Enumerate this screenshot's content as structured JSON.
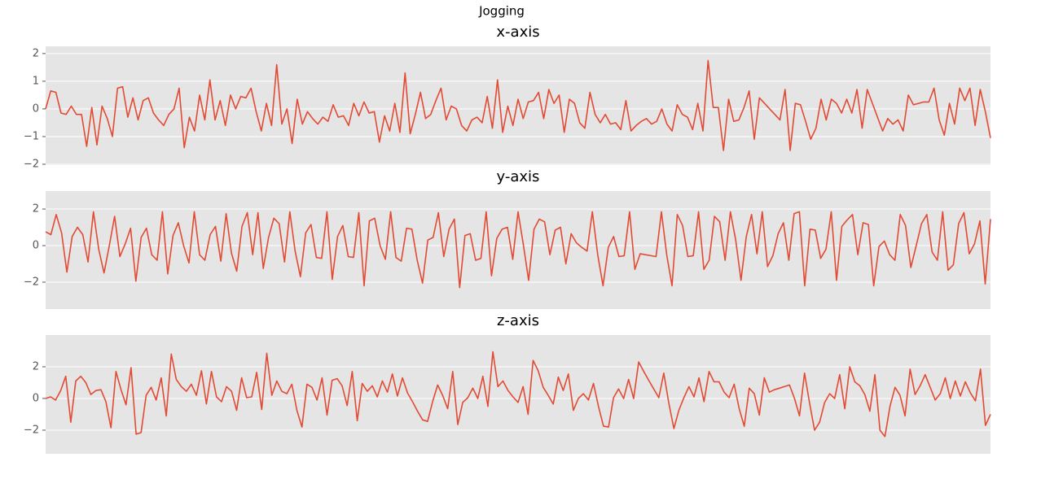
{
  "title": "Jogging",
  "chart_data": [
    {
      "type": "line",
      "title": "x-axis",
      "grid": true,
      "ylim": [
        -2.03,
        2.26
      ],
      "yticks": [
        {
          "value": -2,
          "label": "−2"
        },
        {
          "value": -1,
          "label": "−1"
        },
        0,
        1,
        2
      ],
      "series": [
        {
          "color": "#e24a33",
          "values": [
            0,
            0.65,
            0.6,
            -0.15,
            -0.2,
            0.1,
            -0.2,
            -0.2,
            -1.35,
            0.05,
            -1.3,
            0.1,
            -0.35,
            -1.0,
            0.75,
            0.8,
            -0.3,
            0.4,
            -0.4,
            0.3,
            0.4,
            -0.15,
            -0.4,
            -0.6,
            -0.2,
            0,
            0.75,
            -1.4,
            -0.3,
            -0.8,
            0.5,
            -0.4,
            1.05,
            -0.4,
            0.3,
            -0.6,
            0.5,
            0,
            0.45,
            0.4,
            0.75,
            -0.1,
            -0.8,
            0.2,
            -0.6,
            1.6,
            -0.55,
            0,
            -1.25,
            0.35,
            -0.55,
            -0.1,
            -0.35,
            -0.55,
            -0.3,
            -0.45,
            0.15,
            -0.3,
            -0.25,
            -0.6,
            0.2,
            -0.25,
            0.25,
            -0.15,
            -0.1,
            -1.2,
            -0.25,
            -0.8,
            0.2,
            -0.85,
            1.3,
            -0.9,
            -0.2,
            0.6,
            -0.35,
            -0.2,
            0.3,
            0.75,
            -0.4,
            0.1,
            0,
            -0.6,
            -0.8,
            -0.4,
            -0.3,
            -0.5,
            0.45,
            -0.7,
            1.05,
            -0.85,
            0.1,
            -0.6,
            0.35,
            -0.35,
            0.25,
            0.3,
            0.6,
            -0.35,
            0.7,
            0.2,
            0.5,
            -0.85,
            0.35,
            0.2,
            -0.5,
            -0.7,
            0.6,
            -0.2,
            -0.5,
            -0.2,
            -0.55,
            -0.5,
            -0.75,
            0.3,
            -0.8,
            -0.6,
            -0.45,
            -0.35,
            -0.55,
            -0.45,
            0,
            -0.55,
            -0.8,
            0.15,
            -0.2,
            -0.3,
            -0.75,
            0.2,
            -0.8,
            1.75,
            0.05,
            0.05,
            -1.5,
            0.35,
            -0.45,
            -0.4,
            0.05,
            0.65,
            -1.1,
            0.4,
            0.2,
            0,
            -0.2,
            -0.4,
            0.7,
            -1.5,
            0.2,
            0.15,
            -0.45,
            -1.1,
            -0.7,
            0.35,
            -0.4,
            0.35,
            0.2,
            -0.15,
            0.35,
            -0.15,
            0.7,
            -0.7,
            0.7,
            0.2,
            -0.3,
            -0.8,
            -0.35,
            -0.55,
            -0.4,
            -0.8,
            0.5,
            0.15,
            0.2,
            0.25,
            0.25,
            0.75,
            -0.4,
            -0.95,
            0.2,
            -0.55,
            0.75,
            0.3,
            0.75,
            -0.6,
            0.7,
            -0.1,
            -1.05
          ]
        }
      ]
    },
    {
      "type": "line",
      "title": "y-axis",
      "grid": true,
      "ylim": [
        -3.47,
        2.98
      ],
      "yticks": [
        {
          "value": -2,
          "label": "−2"
        },
        0,
        2
      ],
      "series": [
        {
          "color": "#e24a33",
          "values": [
            0.75,
            0.6,
            1.7,
            0.7,
            -1.45,
            0.5,
            1.0,
            0.6,
            -0.9,
            1.85,
            -0.2,
            -1.5,
            0,
            1.6,
            -0.6,
            0.1,
            0.95,
            -1.95,
            0.45,
            0.95,
            -0.5,
            -0.8,
            1.85,
            -1.55,
            0.55,
            1.25,
            0,
            -0.95,
            1.85,
            -0.5,
            -0.8,
            0.6,
            1.05,
            -0.85,
            1.75,
            -0.4,
            -1.4,
            1.05,
            1.8,
            -0.5,
            1.8,
            -1.25,
            0.45,
            1.5,
            1.2,
            -0.9,
            1.85,
            -0.3,
            -1.7,
            0.7,
            1.15,
            -0.65,
            -0.7,
            1.85,
            -1.85,
            0.5,
            1.1,
            -0.6,
            -0.65,
            1.8,
            -2.2,
            1.35,
            1.5,
            0,
            -0.75,
            1.85,
            -0.65,
            -0.85,
            0.95,
            0.9,
            -0.8,
            -2.05,
            0.3,
            0.45,
            1.8,
            -0.6,
            0.9,
            1.45,
            -2.3,
            0.55,
            0.65,
            -0.8,
            -0.7,
            1.85,
            -1.65,
            0.4,
            0.9,
            1.0,
            -0.75,
            1.85,
            0.05,
            -1.9,
            0.9,
            1.45,
            1.3,
            -0.5,
            0.85,
            1.0,
            -1.0,
            0.65,
            0.15,
            -0.1,
            -0.3,
            1.85,
            -0.5,
            -2.2,
            -0.1,
            0.5,
            -0.6,
            -0.55,
            1.85,
            -1.3,
            -0.45,
            -0.5,
            -0.55,
            -0.6,
            1.85,
            -0.5,
            -2.2,
            1.7,
            1.1,
            -0.6,
            -0.55,
            1.85,
            -1.3,
            -0.8,
            1.6,
            1.3,
            -0.8,
            1.85,
            0.3,
            -1.9,
            0.5,
            1.7,
            -0.45,
            1.85,
            -1.15,
            -0.55,
            0.65,
            1.25,
            -0.8,
            1.75,
            1.85,
            -2.2,
            0.9,
            0.85,
            -0.7,
            -0.2,
            1.85,
            -1.9,
            1.05,
            1.4,
            1.7,
            -0.5,
            1.25,
            1.15,
            -2.2,
            -0.05,
            0.25,
            -0.5,
            -0.8,
            1.7,
            1.1,
            -1.2,
            0,
            1.2,
            1.7,
            -0.35,
            -0.8,
            1.85,
            -1.35,
            -1.05,
            1.2,
            1.8,
            -0.45,
            0.1,
            1.35,
            -2.1,
            1.45
          ]
        }
      ]
    },
    {
      "type": "line",
      "title": "z-axis",
      "grid": true,
      "ylim": [
        -3.49,
        4.0
      ],
      "yticks": [
        {
          "value": -2,
          "label": "−2"
        },
        0,
        2
      ],
      "series": [
        {
          "color": "#e24a33",
          "values": [
            0,
            0.1,
            -0.1,
            0.5,
            1.4,
            -1.5,
            1.1,
            1.4,
            1.0,
            0.25,
            0.5,
            0.55,
            -0.2,
            -1.85,
            1.7,
            0.55,
            -0.4,
            1.95,
            -2.25,
            -2.15,
            0.2,
            0.7,
            -0.1,
            1.3,
            -1.1,
            2.8,
            1.2,
            0.75,
            0.45,
            0.9,
            0.2,
            1.75,
            -0.35,
            1.7,
            0.1,
            -0.2,
            0.75,
            0.45,
            -0.75,
            1.3,
            0.05,
            0.1,
            1.65,
            -0.7,
            2.85,
            0.2,
            1.1,
            0.45,
            0.3,
            0.9,
            -0.75,
            -1.8,
            0.9,
            0.7,
            -0.1,
            1.3,
            -1.05,
            1.15,
            1.25,
            0.8,
            -0.45,
            1.7,
            -1.4,
            0.95,
            0.45,
            0.8,
            0.1,
            1.1,
            0.4,
            1.55,
            0.15,
            1.3,
            0.35,
            -0.2,
            -0.8,
            -1.35,
            -1.45,
            -0.2,
            0.85,
            0.2,
            -0.65,
            1.7,
            -1.65,
            -0.25,
            0.05,
            0.65,
            0,
            1.4,
            -0.5,
            2.95,
            0.75,
            1.1,
            0.5,
            0.1,
            -0.25,
            0.75,
            -1.0,
            2.4,
            1.75,
            0.7,
            0.2,
            -0.35,
            1.35,
            0.5,
            1.55,
            -0.75,
            0,
            0.3,
            -0.1,
            0.95,
            -0.5,
            -1.75,
            -1.8,
            0.05,
            0.6,
            0,
            1.2,
            0,
            2.3,
            1.7,
            1.15,
            0.6,
            0.05,
            1.6,
            -0.3,
            -1.9,
            -0.75,
            0.05,
            0.75,
            0.1,
            1.3,
            -0.2,
            1.7,
            1.05,
            1.05,
            0.4,
            0.05,
            0.9,
            -0.65,
            -1.75,
            0.65,
            0.3,
            -1.05,
            1.3,
            0.4,
            0.55,
            0.65,
            0.75,
            0.85,
            0,
            -1.1,
            1.6,
            -0.3,
            -2.0,
            -1.5,
            -0.25,
            0.3,
            0,
            1.5,
            -0.65,
            2.0,
            1.05,
            0.8,
            0.25,
            -0.8,
            1.5,
            -2.0,
            -2.4,
            -0.5,
            0.7,
            0.2,
            -1.1,
            1.85,
            0.25,
            0.8,
            1.5,
            0.7,
            -0.1,
            0.3,
            1.3,
            0,
            1.1,
            0.15,
            1.05,
            0.35,
            -0.15,
            1.85,
            -1.7,
            -1.0
          ]
        }
      ]
    }
  ]
}
